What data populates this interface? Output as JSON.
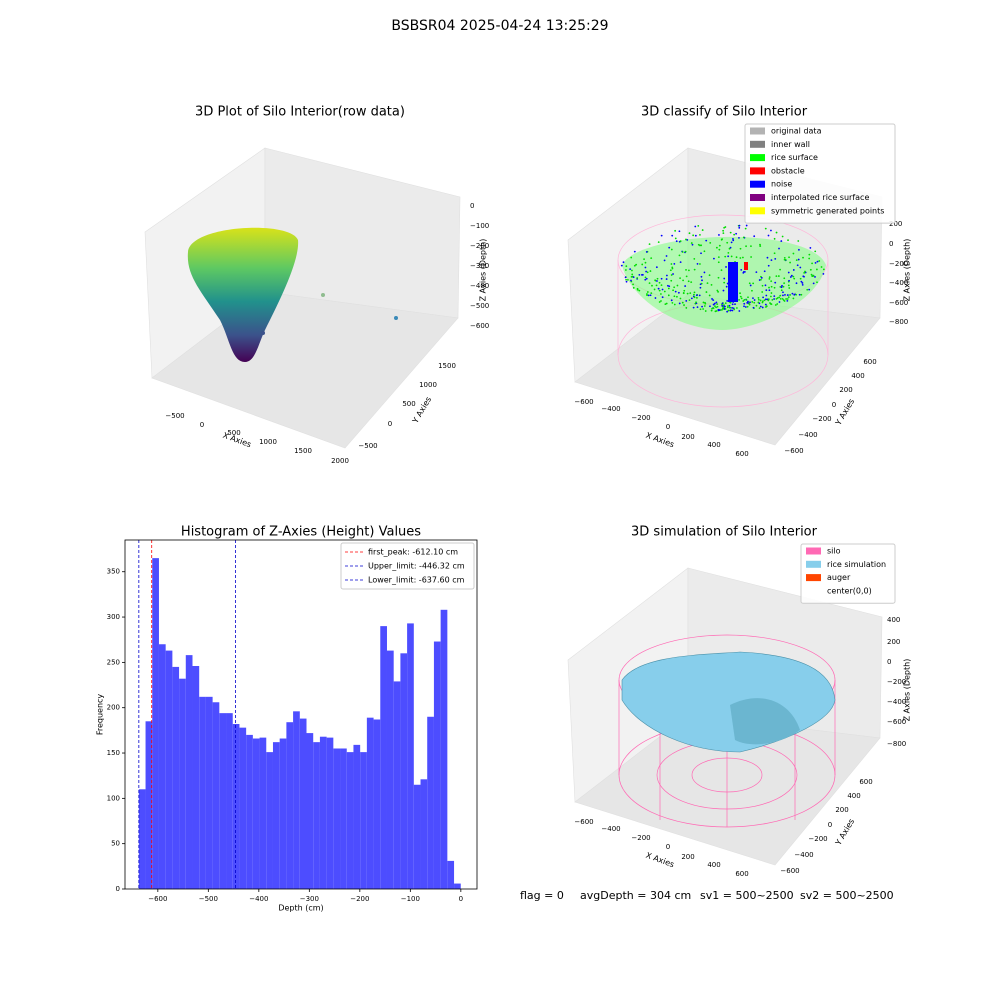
{
  "title": "BSBSR04 2025-04-24 13:25:29",
  "chart_data": [
    {
      "type": "histogram",
      "title": "Histogram of Z-Axies (Height) Values",
      "xlabel": "Depth (cm)",
      "ylabel": "Frequency",
      "color": "#4d4dff",
      "bins": [
        -637.6,
        -624.32,
        -611.04,
        -597.76,
        -584.48,
        -571.2,
        -557.92,
        -544.64,
        -531.36,
        -518.08,
        -504.8,
        -491.52,
        -478.24,
        -464.96,
        -451.68,
        -438.4,
        -425.12,
        -411.84,
        -398.56,
        -385.28,
        -372.0,
        -358.72,
        -345.44,
        -332.16,
        -318.88,
        -305.6,
        -292.32,
        -279.04,
        -265.76,
        -252.48,
        -239.2,
        -225.92,
        -212.64,
        -199.36,
        -186.08,
        -172.8,
        -159.52,
        -146.24,
        -132.96,
        -119.68,
        -106.4,
        -93.12,
        -79.84,
        -66.56,
        -53.28,
        -40.0,
        -26.72,
        -13.44,
        -0.16
      ],
      "values": [
        110,
        185,
        365,
        270,
        263,
        245,
        232,
        258,
        246,
        212,
        212,
        206,
        194,
        194,
        182,
        178,
        170,
        166,
        167,
        151,
        162,
        166,
        184,
        196,
        188,
        172,
        162,
        168,
        167,
        155,
        155,
        151,
        159,
        151,
        189,
        187,
        290,
        263,
        229,
        260,
        293,
        115,
        121,
        190,
        273,
        308,
        31,
        6
      ],
      "xlim": [
        -665,
        32
      ],
      "ylim": [
        0,
        385
      ],
      "xticks": [
        {
          "value": -600,
          "label": "−600"
        },
        {
          "value": -500,
          "label": "−500"
        },
        {
          "value": -400,
          "label": "−400"
        },
        {
          "value": -300,
          "label": "−300"
        },
        {
          "value": -200,
          "label": "−200"
        },
        {
          "value": -100,
          "label": "−100"
        },
        0
      ],
      "yticks": [
        0,
        50,
        100,
        150,
        200,
        250,
        300,
        350
      ],
      "vlines": [
        {
          "label": "first_peak: -612.10 cm",
          "value": -612.1,
          "color": "#ff0000"
        },
        {
          "label": "Upper_limit: -446.32 cm",
          "value": -446.32,
          "color": "#0000cc"
        },
        {
          "label": "Lower_limit: -637.60 cm",
          "value": -637.6,
          "color": "#0000cc"
        }
      ],
      "legend": "upper right"
    }
  ],
  "panels": [
    {
      "title": "3D Plot of Silo Interior(row data)",
      "xlabel": "X Axies",
      "ylabel": "Y Axies",
      "zlabel": "Z Axies (Depth)",
      "xticks": [
        "−500",
        "0",
        "500",
        "1000",
        "1500",
        "2000"
      ],
      "yticks": [
        "−500",
        "0",
        "500",
        "1000",
        "1500"
      ],
      "zticks": [
        "0",
        "−100",
        "−200",
        "−300",
        "−400",
        "−500",
        "−600"
      ]
    },
    {
      "title": "3D classify of Silo Interior",
      "xlabel": "X Axies",
      "ylabel": "Y Axies",
      "zlabel": "Z Axies (Depth)",
      "xticks": [
        "−600",
        "−400",
        "−200",
        "0",
        "200",
        "400",
        "600"
      ],
      "yticks": [
        "−600",
        "−400",
        "−200",
        "0",
        "200",
        "400",
        "600"
      ],
      "zticks": [
        "200",
        "0",
        "−200",
        "−400",
        "−600",
        "−800"
      ],
      "legend": [
        {
          "name": "original data",
          "color": "#b3b3b3"
        },
        {
          "name": "inner wall",
          "color": "#808080"
        },
        {
          "name": "rice surface",
          "color": "#00ff00"
        },
        {
          "name": "obstacle",
          "color": "#ff0000"
        },
        {
          "name": "noise",
          "color": "#0000ff"
        },
        {
          "name": "interpolated rice surface",
          "color": "#800080"
        },
        {
          "name": "symmetric generated points",
          "color": "#ffff00"
        }
      ]
    },
    {
      "title": "3D simulation of Silo Interior",
      "xlabel": "X Axies",
      "ylabel": "Y Axies",
      "zlabel": "Z Axies (Depth)",
      "xticks": [
        "−600",
        "−400",
        "−200",
        "0",
        "200",
        "400",
        "600"
      ],
      "yticks": [
        "−600",
        "−400",
        "−200",
        "0",
        "200",
        "400",
        "600"
      ],
      "zticks": [
        "400",
        "200",
        "0",
        "−200",
        "−400",
        "−600",
        "−800"
      ],
      "legend": [
        {
          "name": "silo",
          "color": "#ff69b4"
        },
        {
          "name": "rice simulation",
          "color": "#87ceeb"
        },
        {
          "name": "auger",
          "color": "#ff4500"
        },
        {
          "name": "center(0,0)",
          "color": "#ffffff"
        }
      ]
    }
  ],
  "footer": [
    "flag = 0",
    "avgDepth = 304 cm",
    "sv1 = 500~2500",
    "sv2 = 500~2500"
  ]
}
